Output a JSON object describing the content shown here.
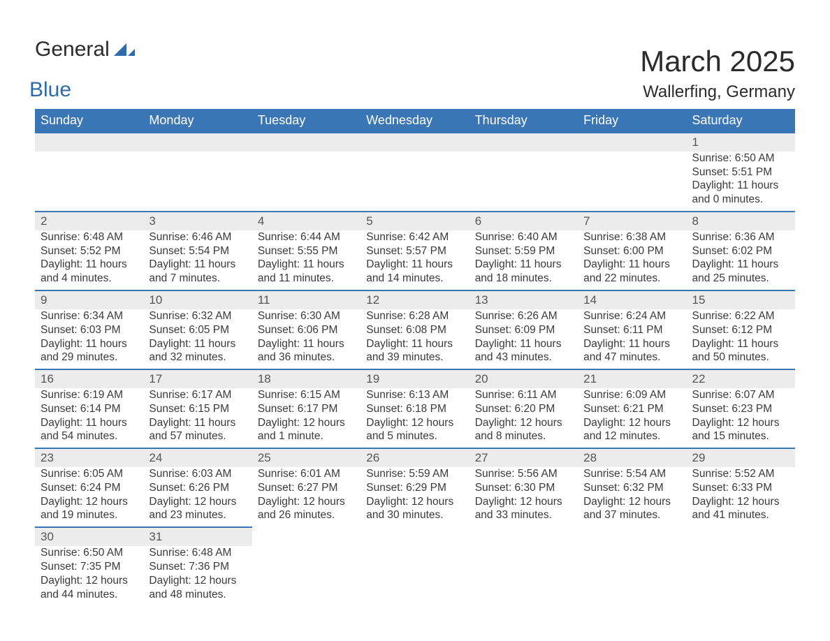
{
  "logo": {
    "word1": "General",
    "word2": "Blue",
    "mark_color": "#2f6aab"
  },
  "title": "March 2025",
  "location": "Wallerfing, Germany",
  "colors": {
    "header_bg": "#3a76b6",
    "header_text": "#ffffff",
    "daynum_bg": "#ececec",
    "row_divider": "#3a76b6",
    "text": "#3a3a3a",
    "page_bg": "#ffffff"
  },
  "daynames": [
    "Sunday",
    "Monday",
    "Tuesday",
    "Wednesday",
    "Thursday",
    "Friday",
    "Saturday"
  ],
  "weeks": [
    {
      "nums": [
        "",
        "",
        "",
        "",
        "",
        "",
        "1"
      ],
      "cells": [
        null,
        null,
        null,
        null,
        null,
        null,
        {
          "sunrise": "Sunrise: 6:50 AM",
          "sunset": "Sunset: 5:51 PM",
          "d1": "Daylight: 11 hours",
          "d2": "and 0 minutes."
        }
      ]
    },
    {
      "nums": [
        "2",
        "3",
        "4",
        "5",
        "6",
        "7",
        "8"
      ],
      "cells": [
        {
          "sunrise": "Sunrise: 6:48 AM",
          "sunset": "Sunset: 5:52 PM",
          "d1": "Daylight: 11 hours",
          "d2": "and 4 minutes."
        },
        {
          "sunrise": "Sunrise: 6:46 AM",
          "sunset": "Sunset: 5:54 PM",
          "d1": "Daylight: 11 hours",
          "d2": "and 7 minutes."
        },
        {
          "sunrise": "Sunrise: 6:44 AM",
          "sunset": "Sunset: 5:55 PM",
          "d1": "Daylight: 11 hours",
          "d2": "and 11 minutes."
        },
        {
          "sunrise": "Sunrise: 6:42 AM",
          "sunset": "Sunset: 5:57 PM",
          "d1": "Daylight: 11 hours",
          "d2": "and 14 minutes."
        },
        {
          "sunrise": "Sunrise: 6:40 AM",
          "sunset": "Sunset: 5:59 PM",
          "d1": "Daylight: 11 hours",
          "d2": "and 18 minutes."
        },
        {
          "sunrise": "Sunrise: 6:38 AM",
          "sunset": "Sunset: 6:00 PM",
          "d1": "Daylight: 11 hours",
          "d2": "and 22 minutes."
        },
        {
          "sunrise": "Sunrise: 6:36 AM",
          "sunset": "Sunset: 6:02 PM",
          "d1": "Daylight: 11 hours",
          "d2": "and 25 minutes."
        }
      ]
    },
    {
      "nums": [
        "9",
        "10",
        "11",
        "12",
        "13",
        "14",
        "15"
      ],
      "cells": [
        {
          "sunrise": "Sunrise: 6:34 AM",
          "sunset": "Sunset: 6:03 PM",
          "d1": "Daylight: 11 hours",
          "d2": "and 29 minutes."
        },
        {
          "sunrise": "Sunrise: 6:32 AM",
          "sunset": "Sunset: 6:05 PM",
          "d1": "Daylight: 11 hours",
          "d2": "and 32 minutes."
        },
        {
          "sunrise": "Sunrise: 6:30 AM",
          "sunset": "Sunset: 6:06 PM",
          "d1": "Daylight: 11 hours",
          "d2": "and 36 minutes."
        },
        {
          "sunrise": "Sunrise: 6:28 AM",
          "sunset": "Sunset: 6:08 PM",
          "d1": "Daylight: 11 hours",
          "d2": "and 39 minutes."
        },
        {
          "sunrise": "Sunrise: 6:26 AM",
          "sunset": "Sunset: 6:09 PM",
          "d1": "Daylight: 11 hours",
          "d2": "and 43 minutes."
        },
        {
          "sunrise": "Sunrise: 6:24 AM",
          "sunset": "Sunset: 6:11 PM",
          "d1": "Daylight: 11 hours",
          "d2": "and 47 minutes."
        },
        {
          "sunrise": "Sunrise: 6:22 AM",
          "sunset": "Sunset: 6:12 PM",
          "d1": "Daylight: 11 hours",
          "d2": "and 50 minutes."
        }
      ]
    },
    {
      "nums": [
        "16",
        "17",
        "18",
        "19",
        "20",
        "21",
        "22"
      ],
      "cells": [
        {
          "sunrise": "Sunrise: 6:19 AM",
          "sunset": "Sunset: 6:14 PM",
          "d1": "Daylight: 11 hours",
          "d2": "and 54 minutes."
        },
        {
          "sunrise": "Sunrise: 6:17 AM",
          "sunset": "Sunset: 6:15 PM",
          "d1": "Daylight: 11 hours",
          "d2": "and 57 minutes."
        },
        {
          "sunrise": "Sunrise: 6:15 AM",
          "sunset": "Sunset: 6:17 PM",
          "d1": "Daylight: 12 hours",
          "d2": "and 1 minute."
        },
        {
          "sunrise": "Sunrise: 6:13 AM",
          "sunset": "Sunset: 6:18 PM",
          "d1": "Daylight: 12 hours",
          "d2": "and 5 minutes."
        },
        {
          "sunrise": "Sunrise: 6:11 AM",
          "sunset": "Sunset: 6:20 PM",
          "d1": "Daylight: 12 hours",
          "d2": "and 8 minutes."
        },
        {
          "sunrise": "Sunrise: 6:09 AM",
          "sunset": "Sunset: 6:21 PM",
          "d1": "Daylight: 12 hours",
          "d2": "and 12 minutes."
        },
        {
          "sunrise": "Sunrise: 6:07 AM",
          "sunset": "Sunset: 6:23 PM",
          "d1": "Daylight: 12 hours",
          "d2": "and 15 minutes."
        }
      ]
    },
    {
      "nums": [
        "23",
        "24",
        "25",
        "26",
        "27",
        "28",
        "29"
      ],
      "cells": [
        {
          "sunrise": "Sunrise: 6:05 AM",
          "sunset": "Sunset: 6:24 PM",
          "d1": "Daylight: 12 hours",
          "d2": "and 19 minutes."
        },
        {
          "sunrise": "Sunrise: 6:03 AM",
          "sunset": "Sunset: 6:26 PM",
          "d1": "Daylight: 12 hours",
          "d2": "and 23 minutes."
        },
        {
          "sunrise": "Sunrise: 6:01 AM",
          "sunset": "Sunset: 6:27 PM",
          "d1": "Daylight: 12 hours",
          "d2": "and 26 minutes."
        },
        {
          "sunrise": "Sunrise: 5:59 AM",
          "sunset": "Sunset: 6:29 PM",
          "d1": "Daylight: 12 hours",
          "d2": "and 30 minutes."
        },
        {
          "sunrise": "Sunrise: 5:56 AM",
          "sunset": "Sunset: 6:30 PM",
          "d1": "Daylight: 12 hours",
          "d2": "and 33 minutes."
        },
        {
          "sunrise": "Sunrise: 5:54 AM",
          "sunset": "Sunset: 6:32 PM",
          "d1": "Daylight: 12 hours",
          "d2": "and 37 minutes."
        },
        {
          "sunrise": "Sunrise: 5:52 AM",
          "sunset": "Sunset: 6:33 PM",
          "d1": "Daylight: 12 hours",
          "d2": "and 41 minutes."
        }
      ]
    },
    {
      "nums": [
        "30",
        "31",
        "",
        "",
        "",
        "",
        ""
      ],
      "cells": [
        {
          "sunrise": "Sunrise: 6:50 AM",
          "sunset": "Sunset: 7:35 PM",
          "d1": "Daylight: 12 hours",
          "d2": "and 44 minutes."
        },
        {
          "sunrise": "Sunrise: 6:48 AM",
          "sunset": "Sunset: 7:36 PM",
          "d1": "Daylight: 12 hours",
          "d2": "and 48 minutes."
        },
        null,
        null,
        null,
        null,
        null
      ]
    }
  ]
}
